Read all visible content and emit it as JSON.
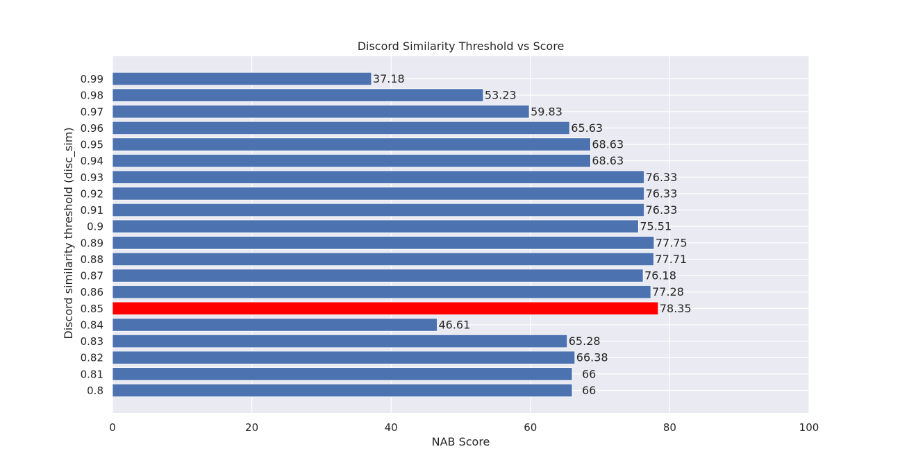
{
  "chart_data": {
    "type": "bar",
    "orientation": "horizontal",
    "title": "Discord Similarity Threshold vs Score",
    "xlabel": "NAB Score",
    "ylabel": "Discord similarity threshold (disc_sim)",
    "xlim": [
      0,
      100
    ],
    "xticks": [
      "0",
      "20",
      "40",
      "60",
      "80",
      "100"
    ],
    "grid": true,
    "categories": [
      "0.99",
      "0.98",
      "0.97",
      "0.96",
      "0.95",
      "0.94",
      "0.93",
      "0.92",
      "0.91",
      "0.9",
      "0.89",
      "0.88",
      "0.87",
      "0.86",
      "0.85",
      "0.84",
      "0.83",
      "0.82",
      "0.81",
      "0.8"
    ],
    "values": [
      37.18,
      53.23,
      59.83,
      65.63,
      68.63,
      68.63,
      76.33,
      76.33,
      76.33,
      75.51,
      77.75,
      77.71,
      76.18,
      77.28,
      78.35,
      46.61,
      65.28,
      66.38,
      66,
      66
    ],
    "value_labels": [
      "37.18",
      "53.23",
      "59.83",
      "65.63",
      "68.63",
      "68.63",
      "76.33",
      "76.33",
      "76.33",
      "75.51",
      "77.75",
      "77.71",
      "76.18",
      "77.28",
      "78.35",
      "46.61",
      "65.28",
      "66.38",
      "66",
      "66"
    ],
    "bar_color": "#4c72b0",
    "highlight_category": "0.85",
    "highlight_color": "#ff0000",
    "plot_background": "#eaeaf2"
  }
}
